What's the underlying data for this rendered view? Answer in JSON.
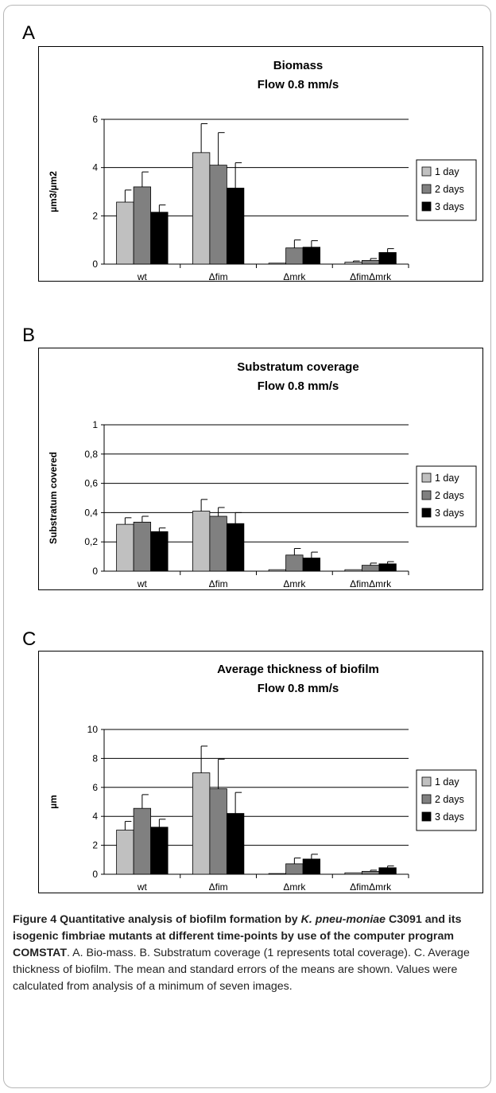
{
  "panels": [
    "A",
    "B",
    "C"
  ],
  "legend": [
    "1 day",
    "2 days",
    "3 days"
  ],
  "colors": {
    "day1": "#c0c0c0",
    "day2": "#808080",
    "day3": "#000000"
  },
  "chart_data": [
    {
      "type": "bar",
      "title": "Biomass",
      "subtitle": "Flow 0.8 mm/s",
      "xlabel": "",
      "ylabel": "µm3/µm2",
      "categories": [
        "wt",
        "Δfim",
        "Δmrk",
        "ΔfimΔmrk"
      ],
      "ylim": [
        0,
        6
      ],
      "yticks": [
        "0",
        "2",
        "4",
        "6"
      ],
      "ytick_values": [
        0,
        2,
        4,
        6
      ],
      "grid": true,
      "legend_position": "right",
      "series": [
        {
          "name": "1 day",
          "values": [
            2.57,
            4.62,
            0.04,
            0.08
          ],
          "errors": [
            0.5,
            1.2,
            0.0,
            0.05
          ]
        },
        {
          "name": "2 days",
          "values": [
            3.2,
            4.1,
            0.67,
            0.15
          ],
          "errors": [
            0.62,
            1.35,
            0.33,
            0.08
          ]
        },
        {
          "name": "3 days",
          "values": [
            2.15,
            3.15,
            0.7,
            0.48
          ],
          "errors": [
            0.3,
            1.05,
            0.27,
            0.16
          ]
        }
      ]
    },
    {
      "type": "bar",
      "title": "Substratum coverage",
      "subtitle": "Flow 0.8 mm/s",
      "xlabel": "",
      "ylabel": "Substratum covered",
      "categories": [
        "wt",
        "Δfim",
        "Δmrk",
        "ΔfimΔmrk"
      ],
      "ylim": [
        0,
        1
      ],
      "yticks": [
        "0",
        "0,2",
        "0,4",
        "0,6",
        "0,8",
        "1"
      ],
      "ytick_values": [
        0,
        0.2,
        0.4,
        0.6,
        0.8,
        1
      ],
      "grid": true,
      "legend_position": "right",
      "series": [
        {
          "name": "1 day",
          "values": [
            0.32,
            0.41,
            0.01,
            0.01
          ],
          "errors": [
            0.045,
            0.08,
            0.0,
            0.0
          ]
        },
        {
          "name": "2 days",
          "values": [
            0.335,
            0.375,
            0.11,
            0.04
          ],
          "errors": [
            0.04,
            0.06,
            0.045,
            0.015
          ]
        },
        {
          "name": "3 days",
          "values": [
            0.27,
            0.325,
            0.09,
            0.05
          ],
          "errors": [
            0.025,
            0.075,
            0.04,
            0.015
          ]
        }
      ]
    },
    {
      "type": "bar",
      "title": "Average thickness of biofilm",
      "subtitle": "Flow 0.8 mm/s",
      "xlabel": "",
      "ylabel": "µm",
      "categories": [
        "wt",
        "Δfim",
        "Δmrk",
        "ΔfimΔmrk"
      ],
      "ylim": [
        0,
        10
      ],
      "yticks": [
        "0",
        "2",
        "4",
        "6",
        "8",
        "10"
      ],
      "ytick_values": [
        0,
        2,
        4,
        6,
        8,
        10
      ],
      "grid": true,
      "legend_position": "right",
      "series": [
        {
          "name": "1 day",
          "values": [
            3.05,
            7.0,
            0.05,
            0.1
          ],
          "errors": [
            0.6,
            1.85,
            0.0,
            0.0
          ]
        },
        {
          "name": "2 days",
          "values": [
            4.55,
            5.9,
            0.72,
            0.2
          ],
          "errors": [
            0.95,
            2.05,
            0.4,
            0.08
          ]
        },
        {
          "name": "3 days",
          "values": [
            3.25,
            4.2,
            1.05,
            0.45
          ],
          "errors": [
            0.55,
            1.45,
            0.33,
            0.12
          ]
        }
      ]
    }
  ],
  "caption": {
    "label": "Figure 4",
    "title_part1": "Quantitative analysis of biofilm formation by ",
    "title_italic": "K. pneu-moniae",
    "title_part2": " C3091 and its isogenic fimbriae mutants at different time-points by use of the computer program COMSTAT",
    "body": ". A. Bio-mass. B. Substratum coverage (1 represents total coverage). C. Average thickness of biofilm. The mean and standard errors of the means are shown. Values were calculated from analysis of a minimum of seven images."
  }
}
